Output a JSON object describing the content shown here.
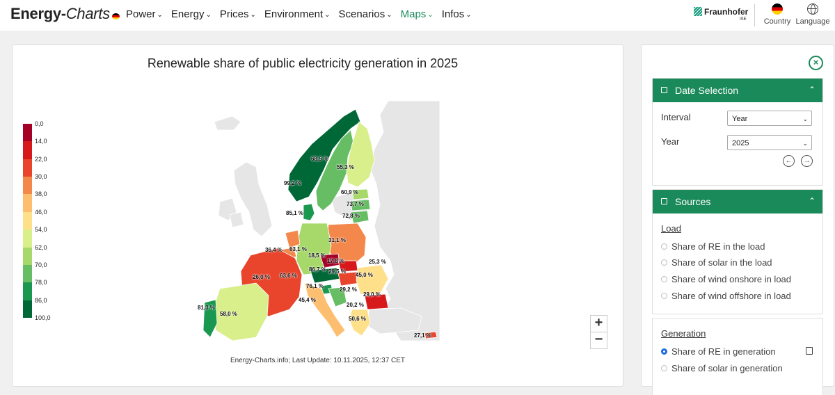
{
  "nav": {
    "brand_bold": "Energy-",
    "brand_thin": "Charts",
    "menu": [
      {
        "label": "Power",
        "active": false
      },
      {
        "label": "Energy",
        "active": false
      },
      {
        "label": "Prices",
        "active": false
      },
      {
        "label": "Environment",
        "active": false
      },
      {
        "label": "Scenarios",
        "active": false
      },
      {
        "label": "Maps",
        "active": true
      },
      {
        "label": "Infos",
        "active": false
      }
    ],
    "partner": "Fraunhofer",
    "partner_sub": "ISE",
    "country_label": "Country",
    "language_label": "Language"
  },
  "map": {
    "title": "Renewable share of public electricity generation in 2025",
    "credit": "Energy-Charts.info; Last Update: 10.11.2025, 12:37 CET",
    "legend_ticks": [
      "0,0",
      "14,0",
      "22,0",
      "30,0",
      "38,0",
      "46,0",
      "54,0",
      "62,0",
      "70,0",
      "78,0",
      "86,0",
      "100,0"
    ],
    "legend_colors": [
      "#a50026",
      "#d7191c",
      "#e8452c",
      "#f4874b",
      "#fdbf6f",
      "#fee08b",
      "#d9ef8b",
      "#a6d96a",
      "#66bd63",
      "#1a9850",
      "#006837"
    ],
    "zoom_in": "+",
    "zoom_out": "−",
    "labels": [
      {
        "text": "99,2 %",
        "value": 99.2
      },
      {
        "text": "68,5 %",
        "value": 68.5
      },
      {
        "text": "55,3 %",
        "value": 55.3
      },
      {
        "text": "60,9 %",
        "value": 60.9
      },
      {
        "text": "73,7 %",
        "value": 73.7
      },
      {
        "text": "72,8 %",
        "value": 72.8
      },
      {
        "text": "85,1 %",
        "value": 85.1
      },
      {
        "text": "31,1 %",
        "value": 31.1
      },
      {
        "text": "36,4 %",
        "value": 36.4
      },
      {
        "text": "63,1 %",
        "value": 63.1
      },
      {
        "text": "18,5 %",
        "value": 18.5
      },
      {
        "text": "17,8 %",
        "value": 17.8
      },
      {
        "text": "25,3 %",
        "value": 25.3
      },
      {
        "text": "86,7 %",
        "value": 86.7
      },
      {
        "text": "29,5 %",
        "value": 29.5
      },
      {
        "text": "26,0 %",
        "value": 26.0
      },
      {
        "text": "63,6 %",
        "value": 63.6
      },
      {
        "text": "45,0 %",
        "value": 45.0
      },
      {
        "text": "76,1 %",
        "value": 76.1
      },
      {
        "text": "29,2 %",
        "value": 29.2
      },
      {
        "text": "29,0 %",
        "value": 29.0
      },
      {
        "text": "45,4 %",
        "value": 45.4
      },
      {
        "text": "20,2 %",
        "value": 20.2
      },
      {
        "text": "81,3 %",
        "value": 81.3
      },
      {
        "text": "58,0 %",
        "value": 58.0
      },
      {
        "text": "50,6 %",
        "value": 50.6
      },
      {
        "text": "27,1 %",
        "value": 27.1
      }
    ]
  },
  "sidebar": {
    "date_card": {
      "title": "Date Selection",
      "interval_label": "Interval",
      "interval_value": "Year",
      "year_label": "Year",
      "year_value": "2025"
    },
    "sources_card": {
      "title": "Sources",
      "load_title": "Load",
      "load_options": [
        "Share of RE in the load",
        "Share of solar in the load",
        "Share of wind onshore in load",
        "Share of wind offshore in load"
      ],
      "generation_title": "Generation",
      "generation_options": [
        {
          "label": "Share of RE in generation",
          "checked": true
        },
        {
          "label": "Share of solar in generation",
          "checked": false
        }
      ]
    }
  }
}
